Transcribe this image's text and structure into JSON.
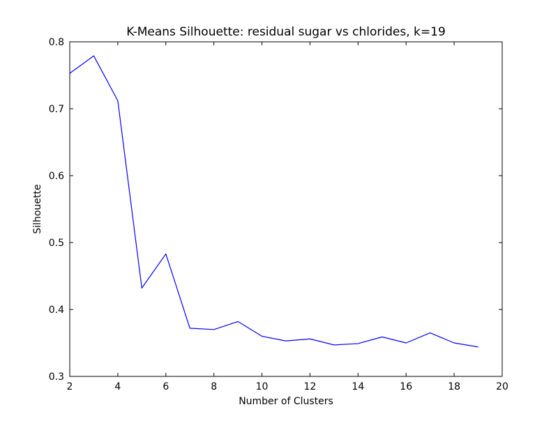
{
  "chart_data": {
    "type": "line",
    "title": "K-Means Silhouette: residual sugar vs chlorides, k=19",
    "xlabel": "Number of Clusters",
    "ylabel": "Silhouette",
    "xlim": [
      2,
      20
    ],
    "ylim": [
      0.3,
      0.8
    ],
    "xticks": [
      2,
      4,
      6,
      8,
      10,
      12,
      14,
      16,
      18,
      20
    ],
    "yticks": [
      0.3,
      0.4,
      0.5,
      0.6,
      0.7,
      0.8
    ],
    "grid": false,
    "series": [
      {
        "color": "#0000ff",
        "x": [
          2,
          3,
          4,
          5,
          6,
          7,
          8,
          9,
          10,
          11,
          12,
          13,
          14,
          15,
          16,
          17,
          18,
          19
        ],
        "y": [
          0.753,
          0.779,
          0.712,
          0.432,
          0.483,
          0.372,
          0.37,
          0.382,
          0.36,
          0.353,
          0.356,
          0.347,
          0.349,
          0.359,
          0.35,
          0.365,
          0.35,
          0.344
        ]
      }
    ]
  }
}
